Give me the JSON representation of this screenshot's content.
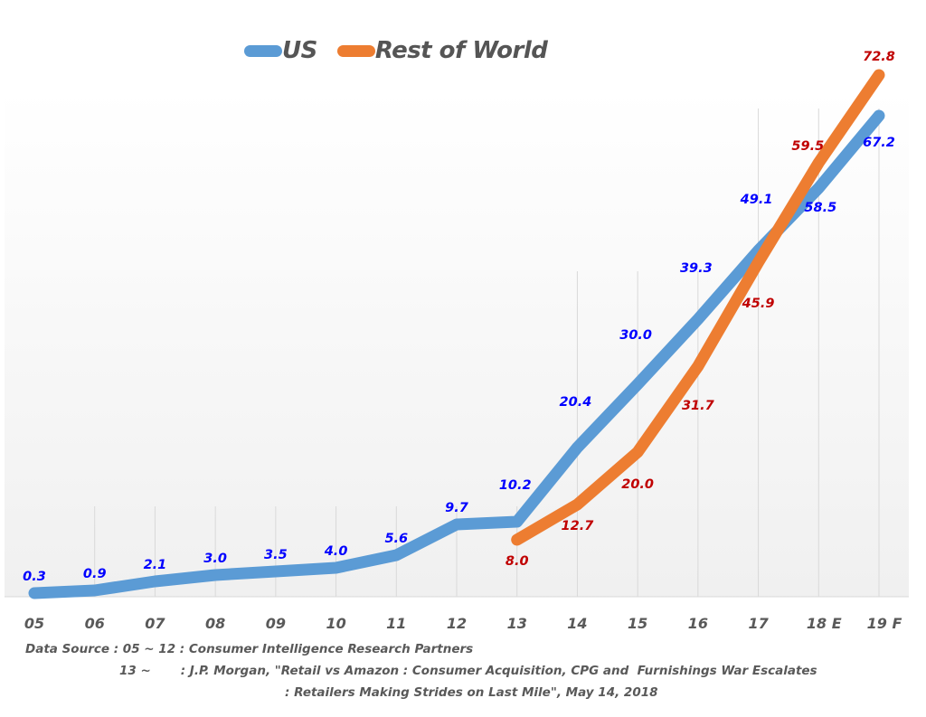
{
  "chart_data": {
    "type": "line",
    "title": "",
    "xlabel": "",
    "ylabel": "",
    "categories": [
      "05",
      "06",
      "07",
      "08",
      "09",
      "10",
      "11",
      "12",
      "13",
      "14",
      "15",
      "16",
      "17",
      "18 E",
      "19 F"
    ],
    "series": [
      {
        "name": "US",
        "color": "#5b9bd5",
        "label_color": "#0000ff",
        "values": [
          0.3,
          0.9,
          2.1,
          3.0,
          3.5,
          4.0,
          5.6,
          9.7,
          10.2,
          20.4,
          30.0,
          39.3,
          49.1,
          58.5,
          67.2
        ],
        "labels": [
          "0.3",
          "0.9",
          "2.1",
          "3.0",
          "3.5",
          "4.0",
          "5.6",
          "9.7",
          "10.2",
          "20.4",
          "30.0",
          "39.3",
          "49.1",
          "58.5",
          "67.2"
        ]
      },
      {
        "name": "Rest of World",
        "color": "#ed7d31",
        "label_color": "#c00000",
        "values": [
          null,
          null,
          null,
          null,
          null,
          null,
          null,
          null,
          8.0,
          12.7,
          20.0,
          31.7,
          45.9,
          59.5,
          72.8
        ],
        "labels": [
          null,
          null,
          null,
          null,
          null,
          null,
          null,
          null,
          "8.0",
          "12.7",
          "20.0",
          "31.7",
          "45.9",
          "59.5",
          "72.8"
        ]
      }
    ],
    "y_axis_visible": false,
    "grid": "vertical",
    "legend": "top-left",
    "note": "Line heights in the original are not strictly proportional to values (hand-adjusted chart)"
  },
  "legend": {
    "items": [
      {
        "label": "US",
        "color": "#5b9bd5"
      },
      {
        "label": "Rest of World",
        "color": "#ed7d31"
      }
    ]
  },
  "footer": {
    "line1": "Data Source : 05 ~ 12 : Consumer Intelligence Research Partners",
    "line2": "13 ~       : J.P. Morgan, \"Retail vs Amazon : Consumer Acquisition, CPG and  Furnishings War Escalates",
    "line3": ": Retailers Making Strides on Last Mile\", May 14, 2018"
  }
}
